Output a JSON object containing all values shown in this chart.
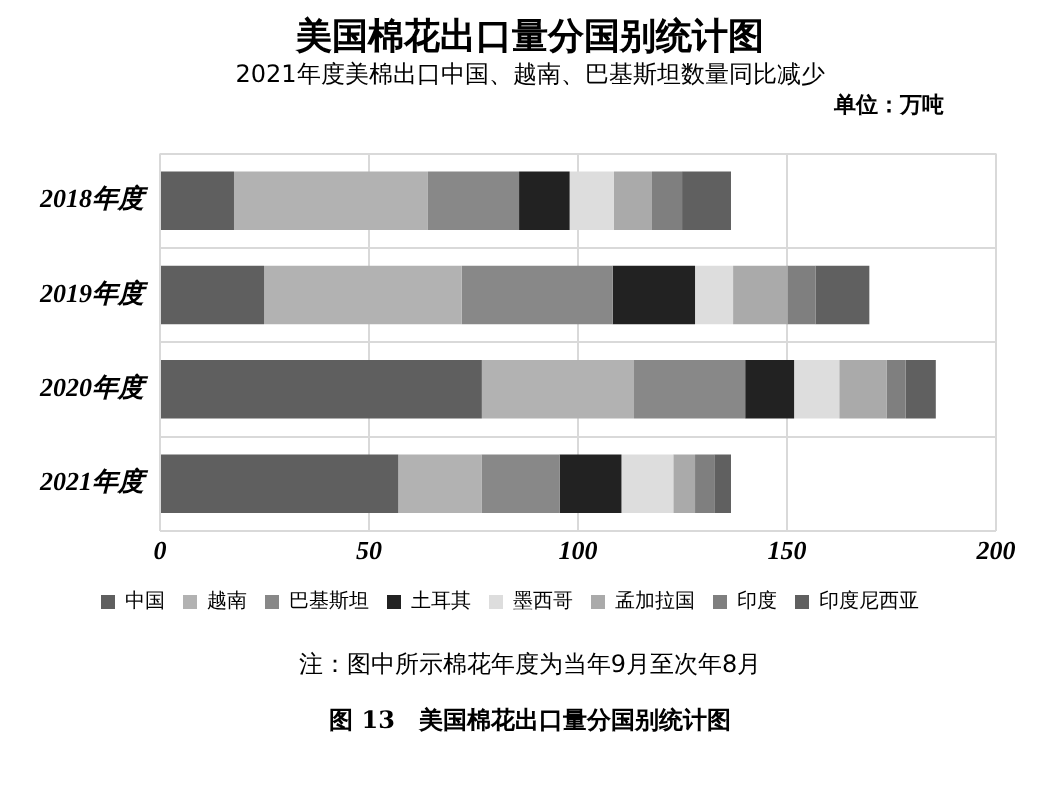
{
  "chart_data": {
    "type": "bar",
    "orientation": "horizontal",
    "stacked": true,
    "title": "美国棉花出口量分国别统计图",
    "subtitle": "2021年度美棉出口中国、越南、巴基斯坦数量同比减少",
    "annotations": [
      "单位：万吨",
      "注：图中所示棉花年度为当年9月至次年8月",
      "图 13　美国棉花出口量分国别统计图"
    ],
    "categories": [
      "2018年度",
      "2019年度",
      "2020年度",
      "2021年度"
    ],
    "series": [
      {
        "name": "中国",
        "color": "#5f5f5f",
        "values": [
          17.7,
          24.9,
          77,
          57
        ]
      },
      {
        "name": "越南",
        "color": "#b2b2b2",
        "values": [
          46.4,
          47.3,
          36.4,
          19.9
        ]
      },
      {
        "name": "巴基斯坦",
        "color": "#888888",
        "values": [
          21.8,
          36.1,
          26.6,
          18.7
        ]
      },
      {
        "name": "土耳其",
        "color": "#222222",
        "values": [
          12.1,
          19.7,
          11.7,
          14.8
        ]
      },
      {
        "name": "墨西哥",
        "color": "#dddddd",
        "values": [
          10.6,
          9.1,
          10.8,
          12.4
        ]
      },
      {
        "name": "孟加拉国",
        "color": "#aaaaaa",
        "values": [
          9.1,
          13,
          11.3,
          5.2
        ]
      },
      {
        "name": "印度",
        "color": "#7f7f7f",
        "values": [
          7.2,
          6.7,
          4.6,
          4.6
        ]
      },
      {
        "name": "印度尼西亚",
        "color": "#606060",
        "values": [
          11.7,
          12.9,
          7.2,
          4
        ]
      }
    ],
    "xlim": [
      0,
      200
    ],
    "xticks": [
      0,
      50,
      100,
      150,
      200
    ],
    "grid": true,
    "legend": "bottom"
  }
}
